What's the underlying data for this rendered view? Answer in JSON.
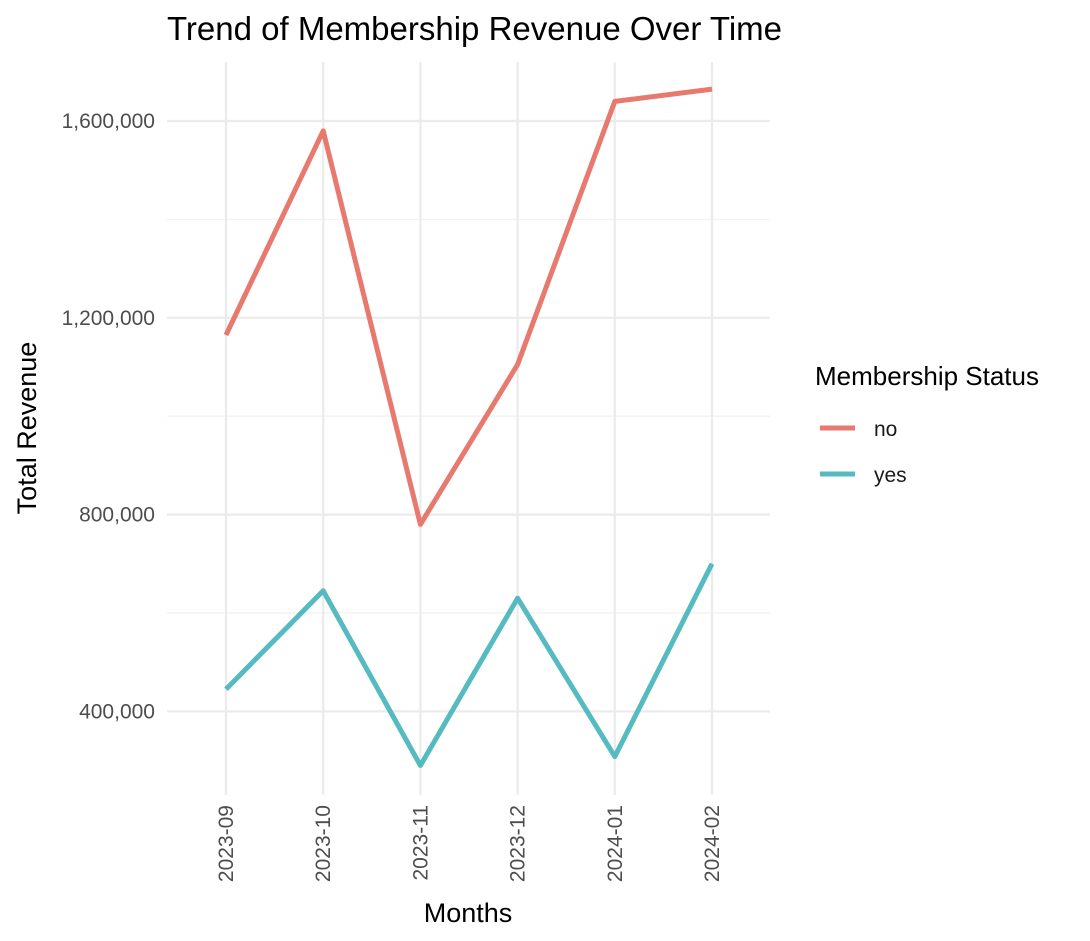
{
  "chart_data": {
    "type": "line",
    "title": "Trend of Membership Revenue Over Time",
    "xlabel": "Months",
    "ylabel": "Total Revenue",
    "categories": [
      "2023-09",
      "2023-10",
      "2023-11",
      "2023-12",
      "2024-01",
      "2024-02"
    ],
    "series": [
      {
        "name": "no",
        "color": "#E7796E",
        "values": [
          1165000,
          1580000,
          780000,
          1105000,
          1640000,
          1665000
        ]
      },
      {
        "name": "yes",
        "color": "#55BBC1",
        "values": [
          445000,
          645000,
          290000,
          630000,
          308000,
          700000
        ]
      }
    ],
    "ylim": [
      230000,
      1720000
    ],
    "yticks": [
      400000,
      800000,
      1200000,
      1600000
    ],
    "ytick_labels": [
      "400,000",
      "800,000",
      "1,200,000",
      "1,600,000"
    ],
    "grid": true,
    "legend": {
      "title": "Membership Status",
      "placement": "right"
    }
  }
}
